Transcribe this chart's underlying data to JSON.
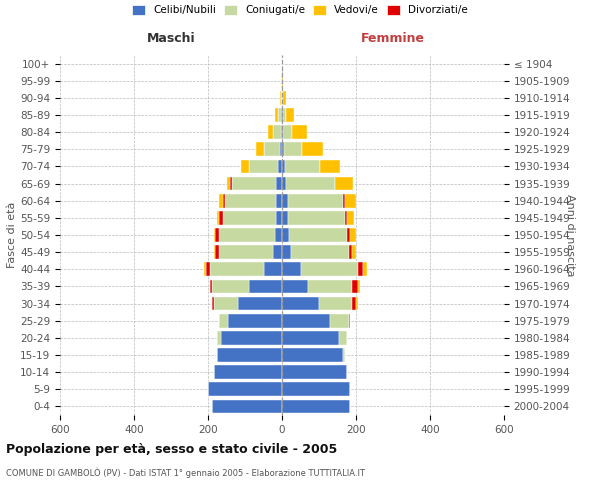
{
  "age_groups": [
    "0-4",
    "5-9",
    "10-14",
    "15-19",
    "20-24",
    "25-29",
    "30-34",
    "35-39",
    "40-44",
    "45-49",
    "50-54",
    "55-59",
    "60-64",
    "65-69",
    "70-74",
    "75-79",
    "80-84",
    "85-89",
    "90-94",
    "95-99",
    "100+"
  ],
  "birth_years": [
    "2000-2004",
    "1995-1999",
    "1990-1994",
    "1985-1989",
    "1980-1984",
    "1975-1979",
    "1970-1974",
    "1965-1969",
    "1960-1964",
    "1955-1959",
    "1950-1954",
    "1945-1949",
    "1940-1944",
    "1935-1939",
    "1930-1934",
    "1925-1929",
    "1920-1924",
    "1915-1919",
    "1910-1914",
    "1905-1909",
    "≤ 1904"
  ],
  "males": {
    "celibi": [
      190,
      200,
      185,
      175,
      165,
      145,
      120,
      90,
      50,
      25,
      20,
      15,
      15,
      15,
      10,
      5,
      3,
      2,
      0,
      0,
      0
    ],
    "coniugati": [
      0,
      0,
      0,
      0,
      10,
      25,
      65,
      100,
      145,
      145,
      150,
      145,
      140,
      120,
      80,
      45,
      20,
      8,
      2,
      1,
      0
    ],
    "vedovi": [
      0,
      0,
      0,
      0,
      0,
      0,
      0,
      0,
      5,
      5,
      5,
      5,
      10,
      10,
      20,
      20,
      15,
      8,
      3,
      1,
      0
    ],
    "divorziati": [
      0,
      0,
      0,
      0,
      0,
      0,
      5,
      5,
      10,
      10,
      10,
      10,
      5,
      5,
      0,
      0,
      0,
      0,
      0,
      0,
      0
    ]
  },
  "females": {
    "nubili": [
      185,
      185,
      175,
      165,
      155,
      130,
      100,
      70,
      50,
      25,
      20,
      15,
      15,
      12,
      8,
      5,
      3,
      2,
      0,
      0,
      0
    ],
    "coniugate": [
      0,
      0,
      0,
      5,
      20,
      50,
      90,
      120,
      155,
      155,
      155,
      155,
      150,
      130,
      95,
      50,
      25,
      10,
      3,
      1,
      0
    ],
    "vedove": [
      0,
      0,
      0,
      0,
      0,
      0,
      5,
      5,
      10,
      10,
      15,
      20,
      30,
      50,
      55,
      55,
      40,
      20,
      8,
      3,
      1
    ],
    "divorziate": [
      0,
      0,
      0,
      0,
      0,
      5,
      10,
      15,
      15,
      10,
      10,
      5,
      5,
      0,
      0,
      0,
      0,
      0,
      0,
      0,
      0
    ]
  },
  "colors": {
    "celibi": "#4472c4",
    "coniugati": "#c5d9a0",
    "vedovi": "#ffc000",
    "divorziati": "#e00000"
  },
  "title": "Popolazione per età, sesso e stato civile - 2005",
  "subtitle": "COMUNE DI GAMBOLÒ (PV) - Dati ISTAT 1° gennaio 2005 - Elaborazione TUTTITALIA.IT",
  "xlabel_left": "Maschi",
  "xlabel_right": "Femmine",
  "ylabel_left": "Fasce di età",
  "ylabel_right": "Anni di nascita",
  "xlim": 600,
  "bg_color": "#ffffff",
  "grid_color": "#bbbbbb",
  "legend_labels": [
    "Celibi/Nubili",
    "Coniugati/e",
    "Vedovi/e",
    "Divorziati/e"
  ]
}
